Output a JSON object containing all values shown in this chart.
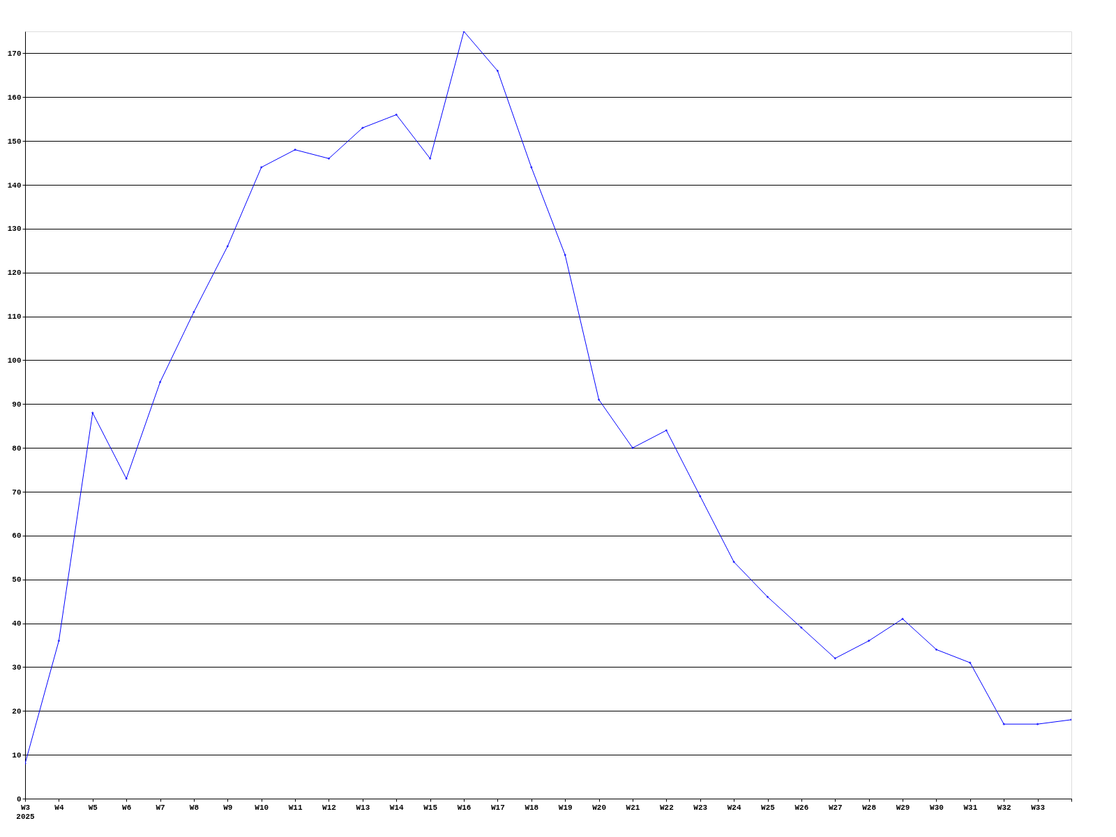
{
  "chart_data": {
    "type": "line",
    "categories": [
      "W3\n2025",
      "W4",
      "W5",
      "W6",
      "W7",
      "W8",
      "W9",
      "W10",
      "W11",
      "W12",
      "W13",
      "W14",
      "W15",
      "W16",
      "W17",
      "W18",
      "W19",
      "W20",
      "W21",
      "W22",
      "W23",
      "W24",
      "W25",
      "W26",
      "W27",
      "W28",
      "W29",
      "W30",
      "W31",
      "W32",
      "W33",
      null
    ],
    "series": [
      {
        "color": "#0000ff",
        "values": [
          8,
          36,
          88,
          73,
          95,
          111,
          126,
          144,
          148,
          146,
          153,
          156,
          146,
          175,
          166,
          144,
          124,
          91,
          80,
          84,
          69,
          54,
          46,
          39,
          32,
          36,
          41,
          34,
          31,
          17,
          17,
          18
        ]
      }
    ],
    "ylim": [
      0,
      175
    ],
    "yticks": [
      0,
      10,
      20,
      30,
      40,
      50,
      60,
      70,
      80,
      90,
      100,
      110,
      120,
      130,
      140,
      150,
      160,
      170
    ],
    "grid": "y",
    "marker": "diamond",
    "line_style": "solid"
  }
}
